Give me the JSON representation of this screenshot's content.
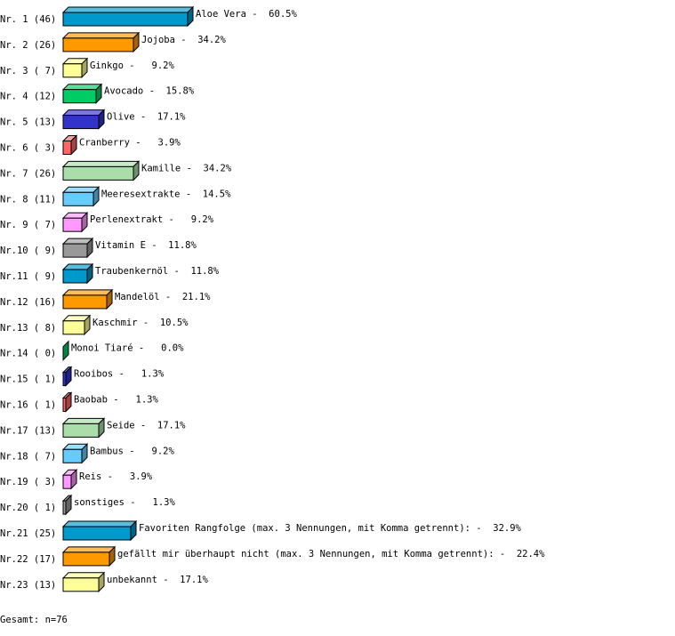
{
  "chart_data": {
    "type": "bar",
    "orientation": "horizontal",
    "style": "3d",
    "unit": "%",
    "categories": [
      "Nr. 1",
      "Nr. 2",
      "Nr. 3",
      "Nr. 4",
      "Nr. 5",
      "Nr. 6",
      "Nr. 7",
      "Nr. 8",
      "Nr. 9",
      "Nr.10",
      "Nr.11",
      "Nr.12",
      "Nr.13",
      "Nr.14",
      "Nr.15",
      "Nr.16",
      "Nr.17",
      "Nr.18",
      "Nr.19",
      "Nr.20",
      "Nr.21",
      "Nr.22",
      "Nr.23"
    ],
    "counts": [
      46,
      26,
      7,
      12,
      13,
      3,
      26,
      11,
      7,
      9,
      9,
      16,
      8,
      0,
      1,
      1,
      13,
      7,
      3,
      1,
      25,
      17,
      13
    ],
    "names": [
      "Aloe Vera",
      "Jojoba",
      "Ginkgo",
      "Avocado",
      "Olive",
      "Cranberry",
      "Kamille",
      "Meeresextrakte",
      "Perlenextrakt",
      "Vitamin E",
      "Traubenkernöl",
      "Mandelöl",
      "Kaschmir",
      "Monoi Tiaré",
      "Rooibos",
      "Baobab",
      "Seide",
      "Bambus",
      "Reis",
      "sonstiges",
      "Favoriten Rangfolge (max. 3 Nennungen, mit Komma getrennt):",
      "gefällt mir überhaupt nicht (max. 3 Nennungen, mit Komma getrennt):",
      "unbekannt"
    ],
    "values": [
      60.5,
      34.2,
      9.2,
      15.8,
      17.1,
      3.9,
      34.2,
      14.5,
      9.2,
      11.8,
      11.8,
      21.1,
      10.5,
      0.0,
      1.3,
      1.3,
      17.1,
      9.2,
      3.9,
      1.3,
      32.9,
      22.4,
      17.1
    ],
    "colors": [
      "#0099cc",
      "#ff9900",
      "#ffff99",
      "#00cc66",
      "#3333cc",
      "#ff6666",
      "#aaddaa",
      "#66ccff",
      "#ff99ff",
      "#999999"
    ]
  },
  "footer": {
    "total": "Gesamt: n=76"
  }
}
